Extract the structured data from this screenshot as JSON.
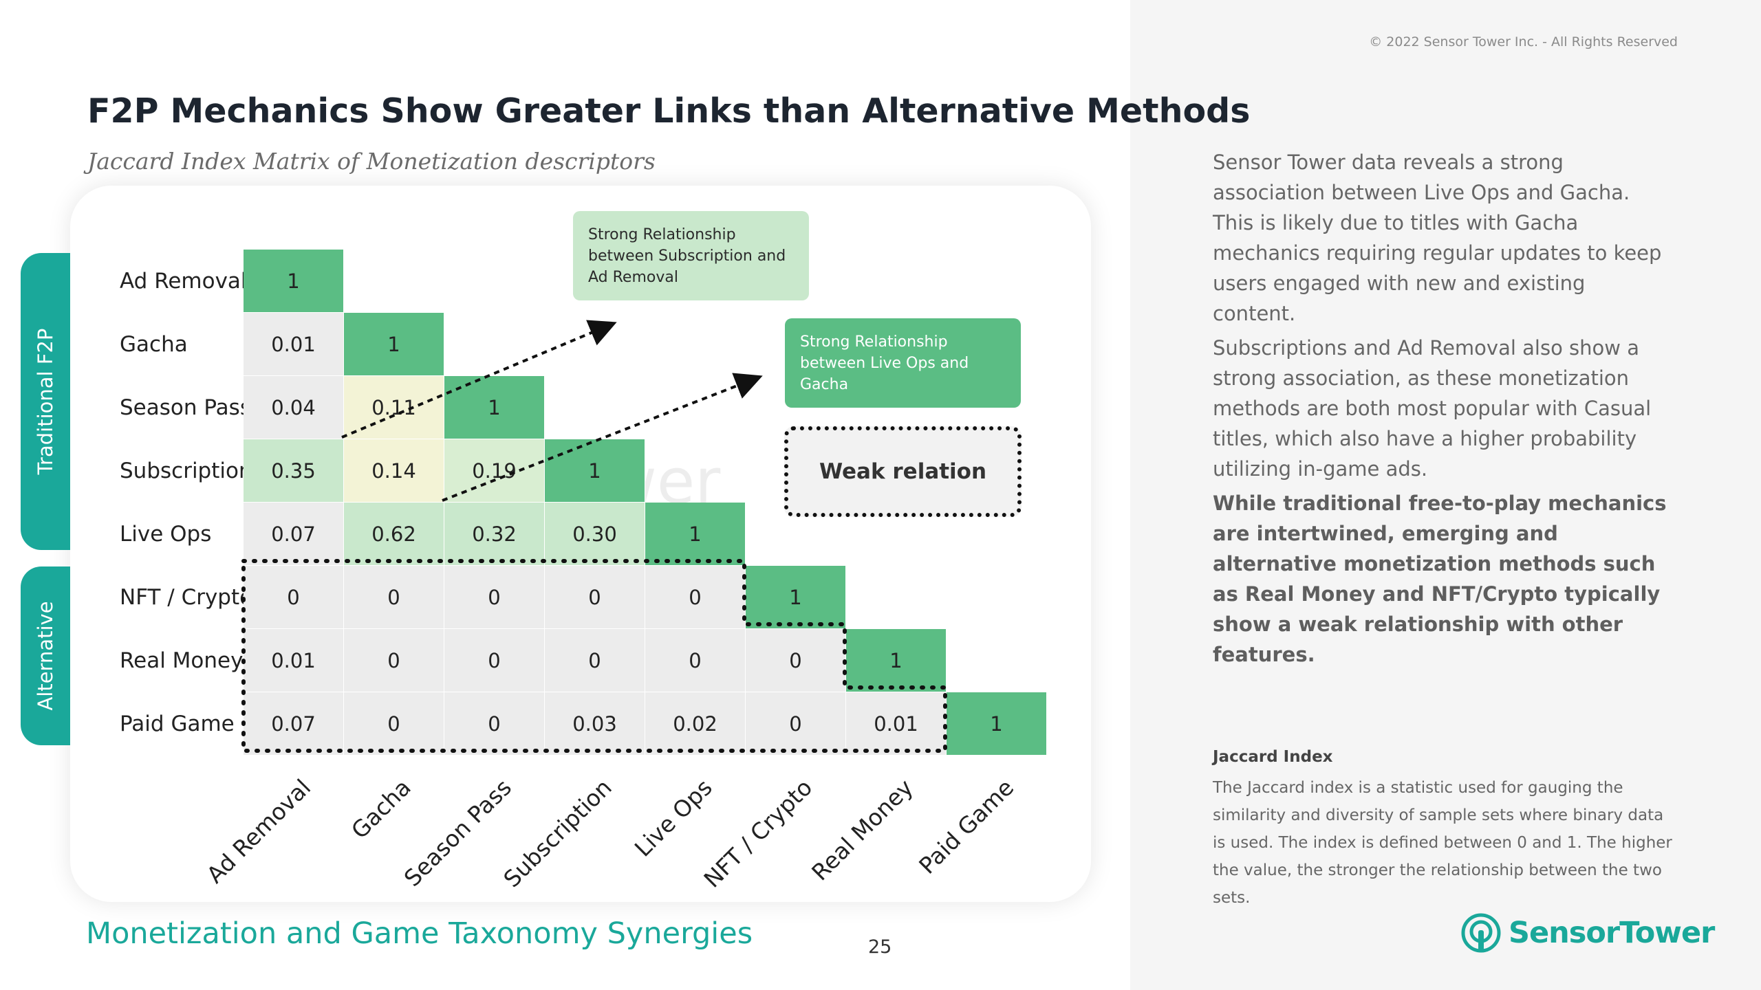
{
  "copyright": "© 2022 Sensor Tower Inc. - All Rights Reserved",
  "title": "F2P Mechanics Show Greater Links than Alternative Methods",
  "subtitle": "Jaccard Index Matrix of Monetization descriptors",
  "side_tabs": {
    "f2p": "Traditional F2P",
    "alternative": "Alternative"
  },
  "watermark": "SensorTower",
  "callouts": {
    "subscription_adremoval": "Strong Relationship between Subscription and Ad Removal",
    "liveops_gacha": "Strong Relationship between Live Ops and Gacha",
    "weak": "Weak relation"
  },
  "chart_data": {
    "type": "heatmap",
    "title": "Jaccard Index Matrix of Monetization descriptors",
    "row_labels": [
      "Ad Removal",
      "Gacha",
      "Season Pass",
      "Subscription",
      "Live Ops",
      "NFT / Crypto",
      "Real Money",
      "Paid Game"
    ],
    "col_labels": [
      "Ad Removal",
      "Gacha",
      "Season Pass",
      "Subscription",
      "Live Ops",
      "NFT / Crypto",
      "Real Money",
      "Paid Game"
    ],
    "groups": [
      {
        "name": "Traditional F2P",
        "rows": [
          "Ad Removal",
          "Gacha",
          "Season Pass",
          "Subscription",
          "Live Ops"
        ]
      },
      {
        "name": "Alternative",
        "rows": [
          "NFT / Crypto",
          "Real Money",
          "Paid Game"
        ]
      }
    ],
    "value_labels": [
      [
        "1"
      ],
      [
        "0.01",
        "1"
      ],
      [
        "0.04",
        "0.11",
        "1"
      ],
      [
        "0.35",
        "0.14",
        "0.19",
        "1"
      ],
      [
        "0.07",
        "0.62",
        "0.32",
        "0.30",
        "1"
      ],
      [
        "0",
        "0",
        "0",
        "0",
        "0",
        "1"
      ],
      [
        "0.01",
        "0",
        "0",
        "0",
        "0",
        "0",
        "1"
      ],
      [
        "0.07",
        "0",
        "0",
        "0.03",
        "0.02",
        "0",
        "0.01",
        "1"
      ]
    ],
    "colors": {
      "max": "#5bbd84",
      "strong": "#c9e8cc",
      "moderate": "#d9eed2",
      "mild": "#f3f3d6",
      "low": "#ececec"
    }
  },
  "footer": {
    "title": "Monetization and Game Taxonomy Synergies",
    "page": "25"
  },
  "paragraphs": [
    "Sensor Tower data reveals a strong association between Live Ops and Gacha. This is likely due to titles with Gacha mechanics requiring regular updates to keep users engaged with new and existing content.",
    "Subscriptions and Ad Removal also show a strong association, as these monetization methods are both most popular with Casual titles, which also have a higher probability utilizing in-game ads.",
    "While traditional free-to-play mechanics are intertwined, emerging and alternative monetization methods such as Real Money and NFT/Crypto typically show a weak relationship with other features."
  ],
  "jaccard": {
    "title": "Jaccard Index",
    "text": "The Jaccard index is a statistic used for gauging the similarity and diversity of sample sets where binary data is used. The index is defined between 0 and 1. The higher the value, the stronger the relationship between the two sets."
  },
  "logo": {
    "text": "SensorTower",
    "icon": "sensor-tower-logo-icon"
  }
}
